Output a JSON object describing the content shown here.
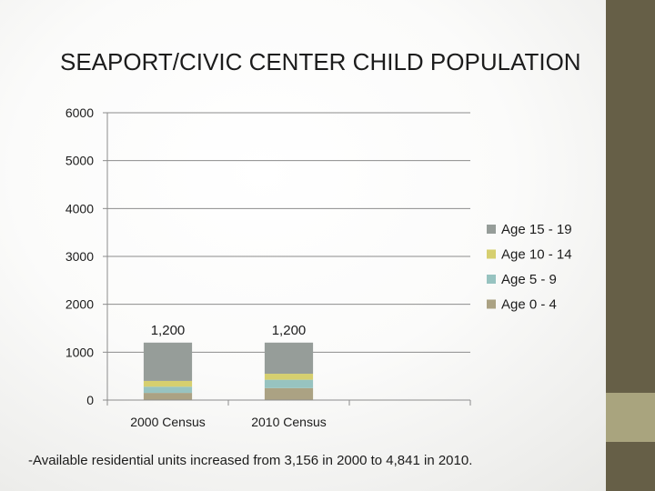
{
  "slide": {
    "title": "SEAPORT/CIVIC CENTER CHILD POPULATION",
    "footnote": "-Available residential units increased from 3,156 in 2000 to 4,841 in 2010."
  },
  "colors": {
    "sidebar": "#665f47",
    "sidebar_accent": "#a9a47e",
    "gridline": "#8c8c8c"
  },
  "chart_data": {
    "type": "bar",
    "stacked": true,
    "title": "",
    "xlabel": "",
    "ylabel": "",
    "categories": [
      "2000 Census",
      "2010 Census",
      ""
    ],
    "series": [
      {
        "name": "Age 0 - 4",
        "color": "#aba283",
        "values": [
          150,
          250,
          null
        ]
      },
      {
        "name": "Age 5 - 9",
        "color": "#97c3c0",
        "values": [
          130,
          175,
          null
        ]
      },
      {
        "name": "Age 10 - 14",
        "color": "#d6cf6f",
        "values": [
          120,
          125,
          null
        ]
      },
      {
        "name": "Age 15 - 19",
        "color": "#969d99",
        "values": [
          800,
          650,
          null
        ]
      }
    ],
    "total_labels": [
      "1,200",
      "1,200",
      ""
    ],
    "ylim": [
      0,
      6000
    ],
    "yticks": [
      0,
      1000,
      2000,
      3000,
      4000,
      5000,
      6000
    ],
    "grid": true,
    "legend_position": "right"
  }
}
